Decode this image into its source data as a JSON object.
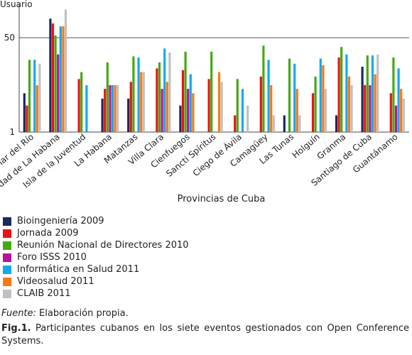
{
  "chart_data": {
    "type": "bar",
    "ylabel": "Usuario",
    "xlabel": "Provincias de Cuba",
    "y_scale": "log",
    "ylim": [
      1,
      200
    ],
    "y_ticks": [
      1,
      50
    ],
    "gridlines": [
      50
    ],
    "legend_position": "bottom",
    "categories": [
      "Pinar del Río",
      "Ciudad de La Habana",
      "Isla de la Juventud",
      "La Habana",
      "Matanzas",
      "Villa Clara",
      "Cienfuegos",
      "Sancti Spíritus",
      "Ciego de Ávila",
      "Camagüey",
      "Las Tunas",
      "Holguín",
      "Granma",
      "Santiago de Cuba",
      "Guantánamo"
    ],
    "series": [
      {
        "name": "Bioingeniería 2009",
        "color": "#1a2a5e",
        "values": [
          5,
          110,
          null,
          4,
          4,
          null,
          3,
          null,
          null,
          null,
          2,
          null,
          2,
          15,
          null
        ]
      },
      {
        "name": "Jornada 2009",
        "color": "#ee1111",
        "values": [
          3,
          90,
          9,
          6,
          8,
          14,
          13,
          9,
          2,
          10,
          null,
          5,
          22,
          7,
          5
        ]
      },
      {
        "name": "Reunión Nacional de Directores 2010",
        "color": "#44aa11",
        "values": [
          20,
          55,
          12,
          18,
          23,
          18,
          28,
          28,
          9,
          36,
          21,
          10,
          34,
          24,
          22
        ]
      },
      {
        "name": "Foro ISSS 2010",
        "color": "#bb1199",
        "values": [
          null,
          25,
          null,
          7,
          null,
          6,
          6,
          null,
          null,
          null,
          null,
          null,
          null,
          7,
          3
        ]
      },
      {
        "name": "Informática en Salud 2011",
        "color": "#11aaee",
        "values": [
          20,
          80,
          7,
          7,
          22,
          32,
          11,
          null,
          6,
          20,
          17,
          21,
          25,
          24,
          14
        ]
      },
      {
        "name": "Videosalud 2011",
        "color": "#ff7711",
        "values": [
          7,
          80,
          null,
          7,
          12,
          8,
          5,
          12,
          null,
          7,
          6,
          16,
          10,
          11,
          6
        ]
      },
      {
        "name": "CLAIB 2011",
        "color": "#c0c0c0",
        "values": [
          17,
          160,
          null,
          7,
          12,
          27,
          null,
          8,
          3,
          2,
          2,
          6,
          7,
          25,
          4
        ]
      }
    ]
  },
  "footer": {
    "source_label": "Fuente:",
    "source_text": "Elaboración propia.",
    "caption_label": "Fig.1.",
    "caption_text": "Participantes cubanos en los siete eventos gestionados con Open Conference Systems."
  }
}
